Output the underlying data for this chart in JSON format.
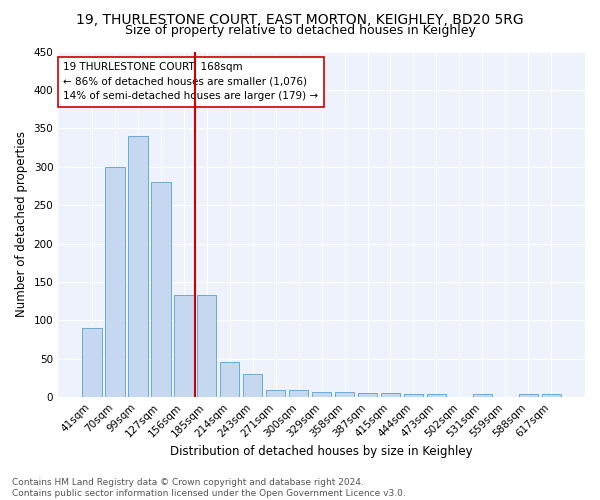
{
  "title1": "19, THURLESTONE COURT, EAST MORTON, KEIGHLEY, BD20 5RG",
  "title2": "Size of property relative to detached houses in Keighley",
  "xlabel": "Distribution of detached houses by size in Keighley",
  "ylabel": "Number of detached properties",
  "categories": [
    "41sqm",
    "70sqm",
    "99sqm",
    "127sqm",
    "156sqm",
    "185sqm",
    "214sqm",
    "243sqm",
    "271sqm",
    "300sqm",
    "329sqm",
    "358sqm",
    "387sqm",
    "415sqm",
    "444sqm",
    "473sqm",
    "502sqm",
    "531sqm",
    "559sqm",
    "588sqm",
    "617sqm"
  ],
  "values": [
    90,
    300,
    340,
    280,
    133,
    133,
    46,
    30,
    10,
    10,
    7,
    7,
    5,
    5,
    4,
    4,
    0,
    4,
    0,
    4,
    4
  ],
  "bar_color": "#c5d8f0",
  "bar_edge_color": "#6aaad4",
  "vline_color": "#cc0000",
  "annotation_text": "19 THURLESTONE COURT: 168sqm\n← 86% of detached houses are smaller (1,076)\n14% of semi-detached houses are larger (179) →",
  "annotation_box_facecolor": "#ffffff",
  "annotation_box_edgecolor": "#cc0000",
  "ylim": [
    0,
    450
  ],
  "yticks": [
    0,
    50,
    100,
    150,
    200,
    250,
    300,
    350,
    400,
    450
  ],
  "footnote": "Contains HM Land Registry data © Crown copyright and database right 2024.\nContains public sector information licensed under the Open Government Licence v3.0.",
  "plot_bg_color": "#eef2fa",
  "title1_fontsize": 10,
  "title2_fontsize": 9,
  "xlabel_fontsize": 8.5,
  "ylabel_fontsize": 8.5,
  "annotation_fontsize": 7.5,
  "tick_fontsize": 7.5,
  "footnote_fontsize": 6.5,
  "vline_pos": 4.5
}
